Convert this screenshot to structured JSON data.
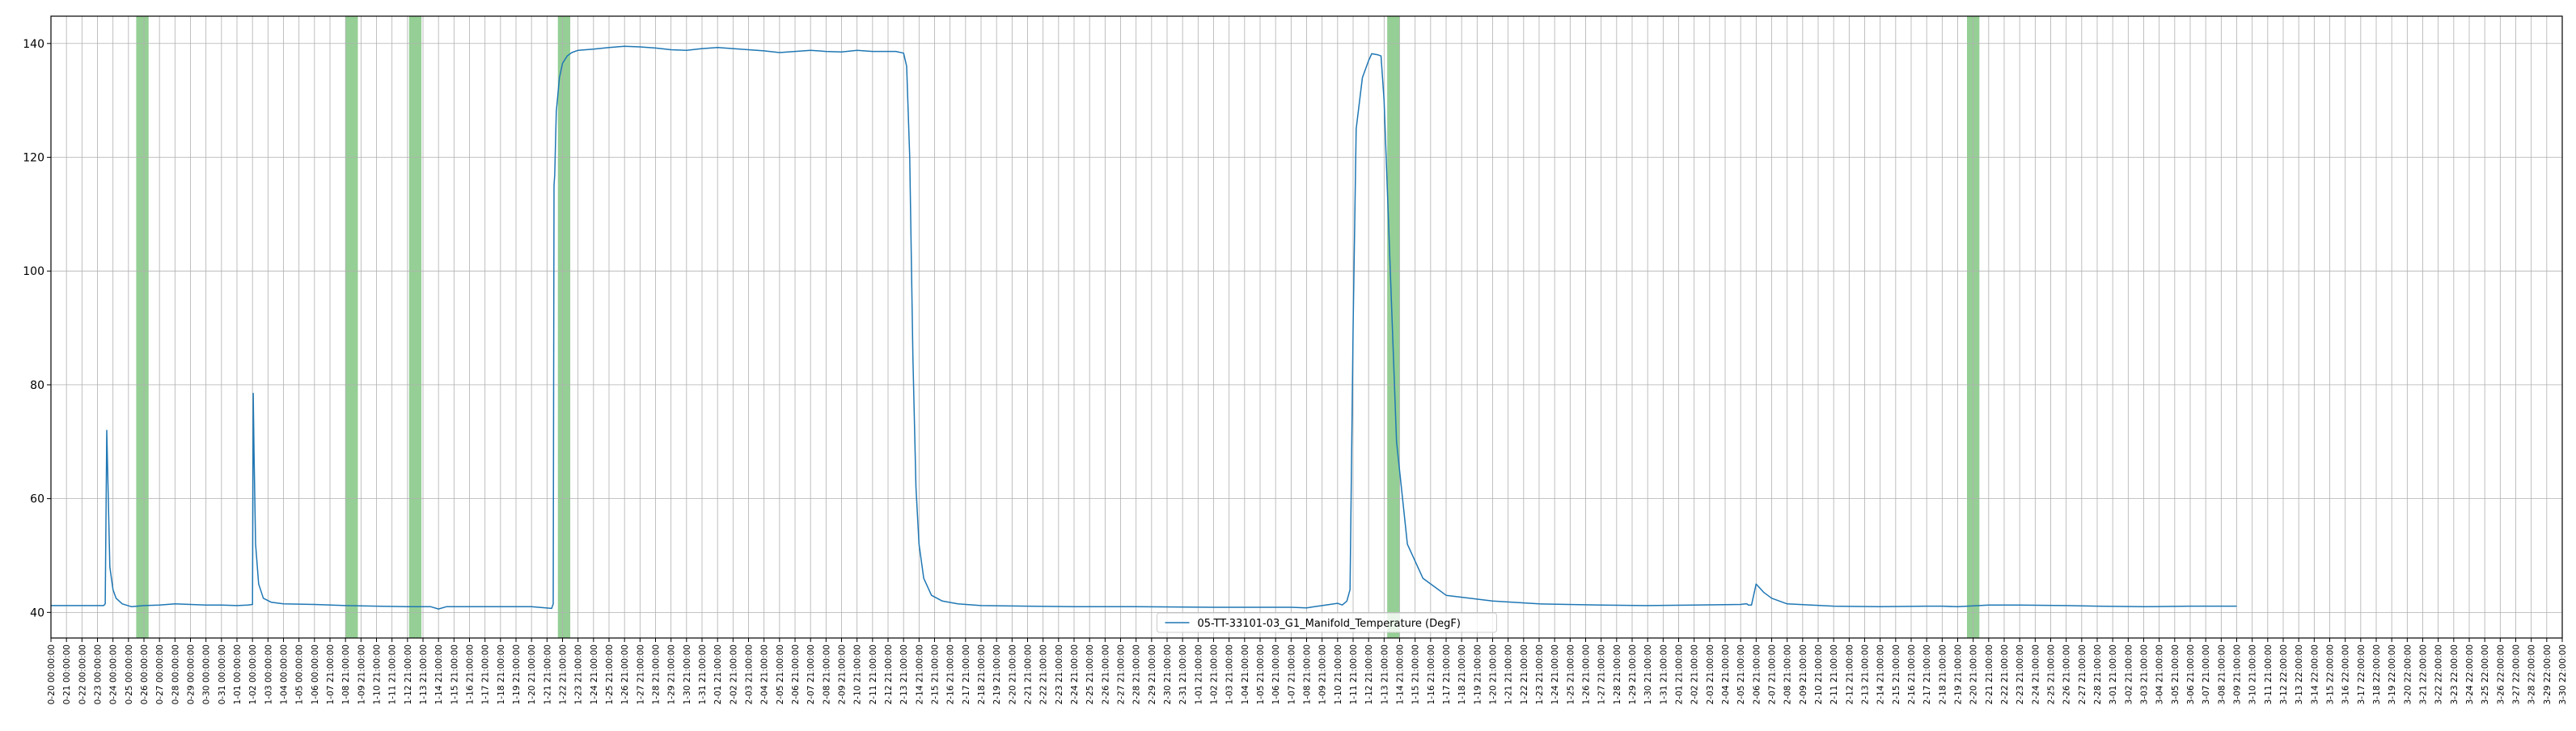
{
  "chart_data": {
    "type": "line",
    "title": "",
    "xlabel": "",
    "ylabel": "",
    "ylim": [
      35.5,
      144.8
    ],
    "yticks": [
      40,
      60,
      80,
      100,
      120,
      140
    ],
    "grid": true,
    "legend_position": "bottom-center",
    "line_color": "#1f77b4",
    "highlight_color": "#2ca02c",
    "x_tick_labels": [
      "0-20 00:00:00",
      "0-21 00:00:00",
      "0-22 00:00:00",
      "0-23 00:00:00",
      "0-24 00:00:00",
      "0-25 00:00:00",
      "0-26 00:00:00",
      "0-27 00:00:00",
      "0-28 00:00:00",
      "0-29 00:00:00",
      "0-30 00:00:00",
      "0-31 00:00:00",
      "1-01 00:00:00",
      "1-02 00:00:00",
      "1-03 00:00:00",
      "1-04 00:00:00",
      "1-05 00:00:00",
      "1-06 00:00:00",
      "1-07 21:00:00",
      "1-08 21:00:00",
      "1-09 21:00:00",
      "1-10 21:00:00",
      "1-11 21:00:00",
      "1-12 21:00:00",
      "1-13 21:00:00",
      "1-14 21:00:00",
      "1-15 21:00:00",
      "1-16 21:00:00",
      "1-17 21:00:00",
      "1-18 21:00:00",
      "1-19 21:00:00",
      "1-20 21:00:00",
      "1-21 21:00:00",
      "1-22 21:00:00",
      "1-23 21:00:00",
      "1-24 21:00:00",
      "1-25 21:00:00",
      "1-26 21:00:00",
      "1-27 21:00:00",
      "1-28 21:00:00",
      "1-29 21:00:00",
      "1-30 21:00:00",
      "1-31 21:00:00",
      "2-01 21:00:00",
      "2-02 21:00:00",
      "2-03 21:00:00",
      "2-04 21:00:00",
      "2-05 21:00:00",
      "2-06 21:00:00",
      "2-07 21:00:00",
      "2-08 21:00:00",
      "2-09 21:00:00",
      "2-10 21:00:00",
      "2-11 21:00:00",
      "2-12 21:00:00",
      "2-13 21:00:00",
      "2-14 21:00:00",
      "2-15 21:00:00",
      "2-16 21:00:00",
      "2-17 21:00:00",
      "2-18 21:00:00",
      "2-19 21:00:00",
      "2-20 21:00:00",
      "2-21 21:00:00",
      "2-22 21:00:00",
      "2-23 21:00:00",
      "2-24 21:00:00",
      "2-25 21:00:00",
      "2-26 21:00:00",
      "2-27 21:00:00",
      "2-28 21:00:00",
      "2-29 21:00:00",
      "2-30 21:00:00",
      "2-31 21:00:00",
      "1-01 21:00:00",
      "1-02 21:00:00",
      "1-03 21:00:00",
      "1-04 21:00:00",
      "1-05 21:00:00",
      "1-06 21:00:00",
      "1-07 21:00:00",
      "1-08 21:00:00",
      "1-09 21:00:00",
      "1-10 21:00:00",
      "1-11 21:00:00",
      "1-12 21:00:00",
      "1-13 21:00:00",
      "1-14 21:00:00",
      "1-15 21:00:00",
      "1-16 21:00:00",
      "1-17 21:00:00",
      "1-18 21:00:00",
      "1-19 21:00:00",
      "1-20 21:00:00",
      "1-21 21:00:00",
      "1-22 21:00:00",
      "1-23 21:00:00",
      "1-24 21:00:00",
      "1-25 21:00:00",
      "1-26 21:00:00",
      "1-27 21:00:00",
      "1-28 21:00:00",
      "1-29 21:00:00",
      "1-30 21:00:00",
      "1-31 21:00:00",
      "2-01 21:00:00",
      "2-02 21:00:00",
      "2-03 21:00:00",
      "2-04 21:00:00",
      "2-05 21:00:00",
      "2-06 21:00:00",
      "2-07 21:00:00",
      "2-08 21:00:00",
      "2-09 21:00:00",
      "2-10 21:00:00",
      "2-11 21:00:00",
      "2-12 21:00:00",
      "2-13 21:00:00",
      "2-14 21:00:00",
      "2-15 21:00:00",
      "2-16 21:00:00",
      "2-17 21:00:00",
      "2-18 21:00:00",
      "2-19 21:00:00",
      "2-20 21:00:00",
      "2-21 21:00:00",
      "2-22 21:00:00",
      "2-23 21:00:00",
      "2-24 21:00:00",
      "2-25 21:00:00",
      "2-26 21:00:00",
      "2-27 21:00:00",
      "2-28 21:00:00",
      "3-01 21:00:00",
      "3-02 21:00:00",
      "3-03 21:00:00",
      "3-04 21:00:00",
      "3-05 21:00:00",
      "3-06 21:00:00",
      "3-07 21:00:00",
      "3-08 21:00:00",
      "3-09 21:00:00",
      "3-10 21:00:00",
      "3-11 21:00:00",
      "3-12 22:00:00",
      "3-13 22:00:00",
      "3-14 22:00:00",
      "3-15 22:00:00",
      "3-16 22:00:00",
      "3-17 22:00:00",
      "3-18 22:00:00",
      "3-19 22:00:00",
      "3-20 22:00:00",
      "3-21 22:00:00",
      "3-22 22:00:00",
      "3-23 22:00:00",
      "3-24 22:00:00",
      "3-25 22:00:00",
      "3-26 22:00:00",
      "3-27 22:00:00",
      "3-28 22:00:00",
      "3-29 22:00:00",
      "3-30 22:00:00"
    ],
    "highlight_spans": [
      {
        "from": 5.5,
        "to": 6.3
      },
      {
        "from": 19.0,
        "to": 19.8
      },
      {
        "from": 23.1,
        "to": 23.9
      },
      {
        "from": 32.7,
        "to": 33.5
      },
      {
        "from": 86.2,
        "to": 87.0
      },
      {
        "from": 123.6,
        "to": 124.4
      }
    ],
    "series": [
      {
        "name": "05-TT-33101-03_G1_Manifold_Temperature (DegF)",
        "x": [
          0,
          3.4,
          3.5,
          3.6,
          3.7,
          3.8,
          4.0,
          4.2,
          4.6,
          5.2,
          6.0,
          7,
          8,
          9,
          10,
          11,
          12,
          12.7,
          13.0,
          13.05,
          13.1,
          13.2,
          13.4,
          13.7,
          14.2,
          15,
          17,
          19,
          21,
          23,
          24.5,
          25.0,
          25.5,
          26,
          27,
          29,
          31,
          32.3,
          32.4,
          32.45,
          32.5,
          32.6,
          32.8,
          33,
          33.3,
          33.6,
          34,
          35,
          36,
          37,
          38,
          39,
          40,
          41,
          42,
          43,
          44,
          45,
          46,
          47,
          48,
          49,
          50,
          51,
          52,
          53,
          54,
          54.5,
          55.0,
          55.2,
          55.4,
          55.6,
          55.8,
          56.0,
          56.3,
          56.8,
          57.5,
          58.5,
          60,
          63,
          66,
          70,
          75,
          80,
          81,
          81.5,
          82,
          82.5,
          83.0,
          83.3,
          83.6,
          83.8,
          84,
          84.2,
          84.6,
          85.0,
          85.2,
          85.4,
          85.6,
          85.8,
          86.0,
          86.4,
          86.8,
          87.5,
          88.5,
          90,
          93,
          96,
          100,
          103,
          106,
          109,
          109.3,
          109.4,
          109.5,
          109.7,
          110,
          110.5,
          111,
          112,
          115,
          118,
          121,
          122,
          123,
          125,
          127,
          130,
          132,
          135,
          138,
          141
        ],
        "y": [
          41.2,
          41.2,
          41.5,
          72,
          60,
          48,
          44,
          42.5,
          41.5,
          41,
          41.2,
          41.3,
          41.5,
          41.4,
          41.3,
          41.3,
          41.2,
          41.3,
          41.4,
          78.5,
          68,
          52,
          45,
          42.5,
          41.8,
          41.5,
          41.4,
          41.2,
          41.1,
          41,
          41,
          40.6,
          41,
          41,
          41,
          41,
          41,
          40.7,
          41.5,
          115,
          117,
          128,
          134,
          136.5,
          137.8,
          138.4,
          138.8,
          139,
          139.3,
          139.5,
          139.4,
          139.2,
          138.9,
          138.8,
          139.1,
          139.3,
          139.1,
          138.9,
          138.7,
          138.4,
          138.6,
          138.8,
          138.6,
          138.5,
          138.8,
          138.6,
          138.6,
          138.6,
          138.3,
          136,
          120,
          85,
          62,
          52,
          46,
          43,
          42,
          41.5,
          41.2,
          41.1,
          41,
          41,
          40.9,
          40.9,
          40.8,
          41,
          41.2,
          41.4,
          41.6,
          41.3,
          42,
          44,
          90,
          125,
          134,
          137,
          138.2,
          138.1,
          138,
          137.8,
          130,
          100,
          70,
          52,
          46,
          43,
          42,
          41.5,
          41.3,
          41.2,
          41.3,
          41.4,
          41.5,
          41.5,
          41.3,
          41.3,
          45,
          43.5,
          42.5,
          41.5,
          41.1,
          41,
          41.1,
          41.1,
          41,
          41.3,
          41.3,
          41.2,
          41.1,
          41,
          41.1,
          41.1
        ]
      }
    ]
  }
}
